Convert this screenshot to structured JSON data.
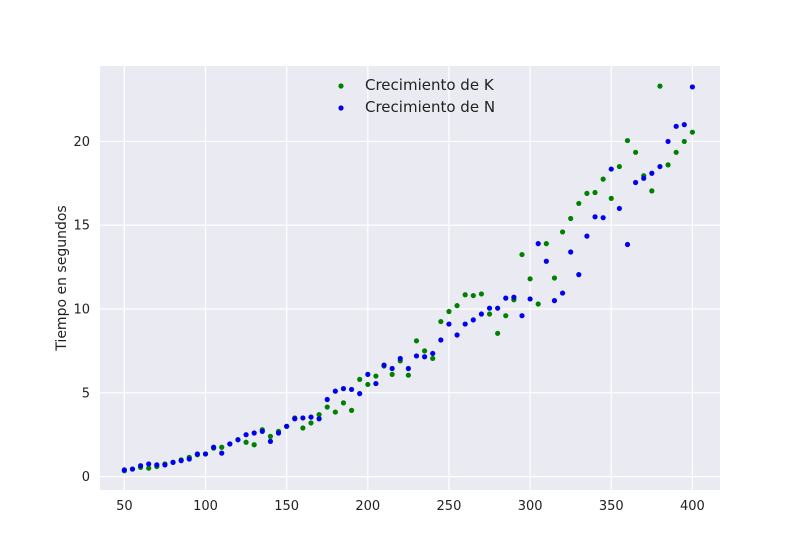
{
  "colors": {
    "plot_background": "#eaeaf2",
    "grid": "#ffffff",
    "series_k": "#008000",
    "series_n": "#0000ee"
  },
  "chart_data": {
    "type": "scatter",
    "title": "",
    "xlabel": "",
    "ylabel": "Tiempo en segundos",
    "xlim": [
      35,
      417
    ],
    "ylim": [
      -0.8,
      24.5
    ],
    "xticks": [
      50,
      100,
      150,
      200,
      250,
      300,
      350,
      400
    ],
    "yticks": [
      0,
      5,
      10,
      15,
      20
    ],
    "grid": true,
    "legend_position": "top-center",
    "series": [
      {
        "name": "Crecimiento de K",
        "color": "#008000",
        "x": [
          50,
          55,
          60,
          65,
          70,
          75,
          80,
          85,
          90,
          95,
          100,
          105,
          110,
          115,
          120,
          125,
          130,
          135,
          140,
          145,
          150,
          155,
          160,
          165,
          170,
          175,
          180,
          185,
          190,
          195,
          200,
          205,
          210,
          215,
          220,
          225,
          230,
          235,
          240,
          245,
          250,
          255,
          260,
          265,
          270,
          275,
          280,
          285,
          290,
          295,
          300,
          305,
          310,
          315,
          320,
          325,
          330,
          335,
          340,
          345,
          350,
          355,
          360,
          365,
          370,
          375,
          380,
          385,
          390,
          395,
          400
        ],
        "y": [
          0.35,
          0.45,
          0.55,
          0.5,
          0.6,
          0.75,
          0.85,
          1.0,
          1.15,
          1.3,
          1.35,
          1.7,
          1.75,
          1.95,
          2.2,
          2.05,
          1.9,
          2.8,
          2.4,
          2.7,
          3.0,
          3.5,
          2.9,
          3.2,
          3.7,
          4.15,
          3.85,
          4.4,
          3.95,
          5.8,
          5.5,
          6.0,
          6.6,
          6.1,
          6.9,
          6.05,
          8.1,
          7.5,
          7.05,
          9.25,
          9.85,
          10.2,
          10.85,
          10.8,
          10.9,
          9.7,
          8.55,
          9.6,
          10.55,
          13.25,
          11.8,
          10.3,
          13.9,
          11.85,
          14.6,
          15.4,
          16.3,
          16.9,
          16.95,
          17.75,
          16.6,
          18.5,
          20.05,
          19.35,
          17.95,
          17.05,
          23.3,
          18.6,
          19.35,
          20.0,
          20.55
        ]
      },
      {
        "name": "Crecimiento de N",
        "color": "#0000ee",
        "x": [
          50,
          55,
          60,
          65,
          70,
          75,
          80,
          85,
          90,
          95,
          100,
          105,
          110,
          115,
          120,
          125,
          130,
          135,
          140,
          145,
          150,
          155,
          160,
          165,
          170,
          175,
          180,
          185,
          190,
          195,
          200,
          205,
          210,
          215,
          220,
          225,
          230,
          235,
          240,
          245,
          250,
          255,
          260,
          265,
          270,
          275,
          280,
          285,
          290,
          295,
          300,
          305,
          310,
          315,
          320,
          325,
          330,
          335,
          340,
          345,
          350,
          355,
          360,
          365,
          370,
          375,
          380,
          385,
          390,
          395,
          400
        ],
        "y": [
          0.4,
          0.45,
          0.65,
          0.75,
          0.7,
          0.7,
          0.85,
          0.95,
          1.05,
          1.35,
          1.35,
          1.75,
          1.4,
          1.95,
          2.2,
          2.5,
          2.6,
          2.7,
          2.1,
          2.6,
          3.0,
          3.45,
          3.5,
          3.55,
          3.45,
          4.6,
          5.1,
          5.25,
          5.2,
          4.95,
          6.1,
          5.55,
          6.65,
          6.45,
          7.05,
          6.45,
          7.2,
          7.15,
          7.35,
          8.15,
          9.1,
          8.45,
          9.1,
          9.35,
          9.7,
          10.05,
          10.05,
          10.65,
          10.7,
          9.6,
          10.6,
          13.9,
          12.85,
          10.5,
          10.95,
          13.4,
          12.05,
          14.35,
          15.5,
          15.45,
          18.35,
          16.0,
          13.85,
          17.55,
          17.8,
          18.1,
          18.5,
          20.0,
          20.9,
          21.0,
          23.25
        ]
      }
    ]
  }
}
